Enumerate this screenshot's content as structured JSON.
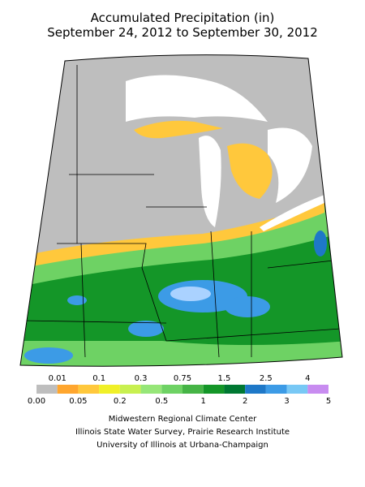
{
  "header": {
    "title": [
      "Accumulated Precipitation (in)",
      "September 24, 2012 to September 30, 2012"
    ]
  },
  "legend": {
    "colors": [
      "#bebebe",
      "#ffa62e",
      "#ffc83c",
      "#f0f028",
      "#c8f050",
      "#96e678",
      "#6ed264",
      "#46b446",
      "#149628",
      "#007832",
      "#1e78c8",
      "#3c9be6",
      "#78c8f5",
      "#aad2ff",
      "#c88cf0"
    ],
    "top_labels": [
      "0.01",
      "0.1",
      "0.3",
      "0.75",
      "1.5",
      "2.5",
      "4"
    ],
    "bottom_labels": [
      "0.00",
      "0.05",
      "0.2",
      "0.5",
      "1",
      "2",
      "3",
      "5"
    ]
  },
  "footer": {
    "lines": [
      "Midwestern Regional Climate Center",
      "Illinois State Water Survey, Prairie Research Institute",
      "University of Illinois at Urbana-Champaign"
    ]
  }
}
